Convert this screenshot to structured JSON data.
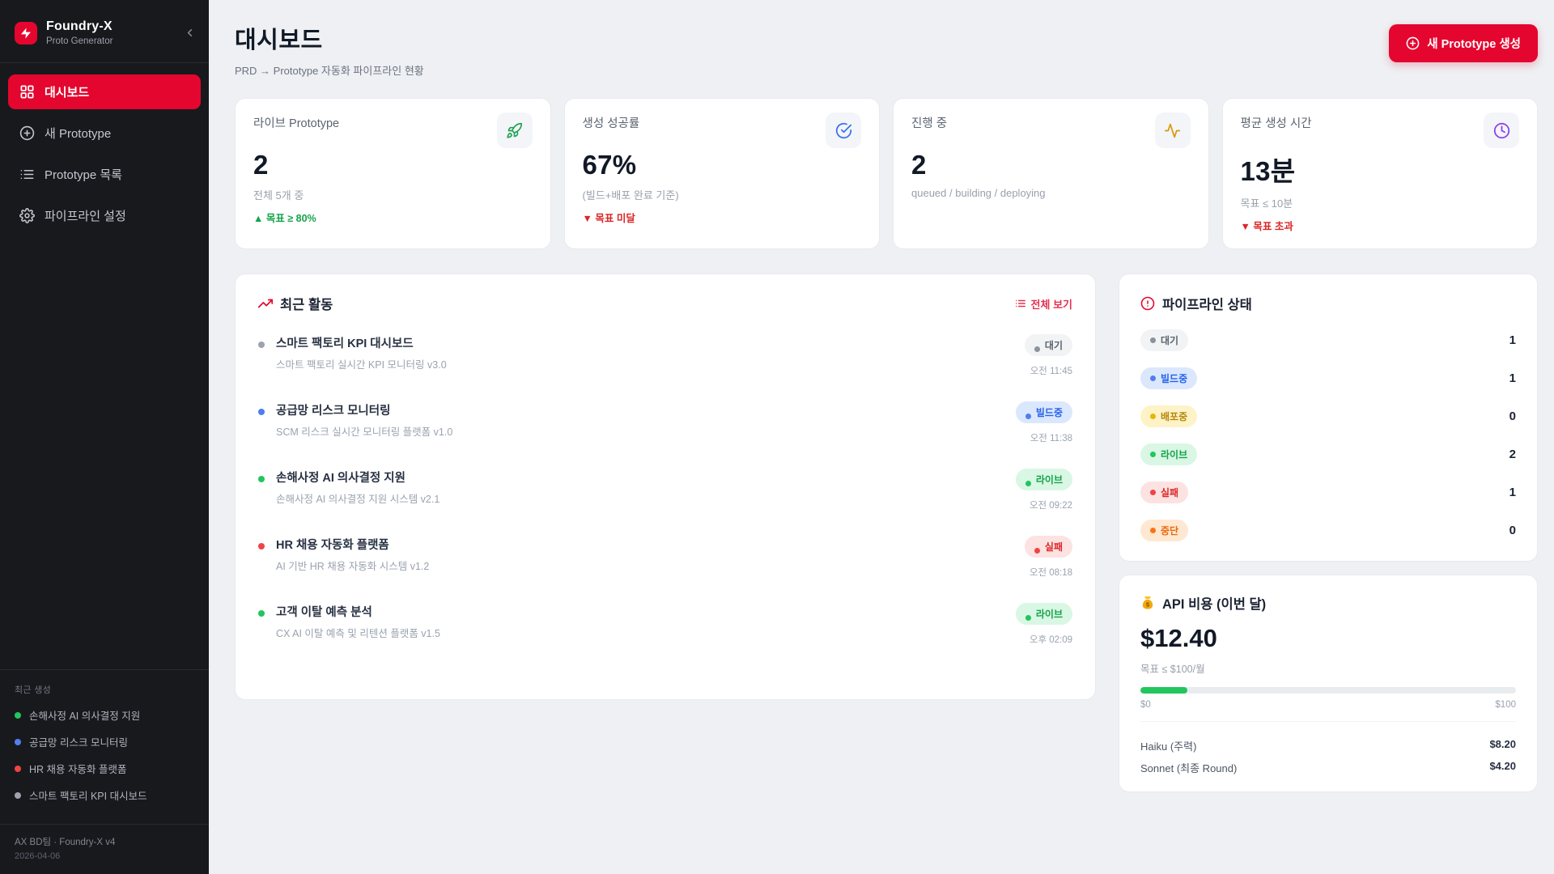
{
  "colors": {
    "brand_red": "#e4062e",
    "sidebar_bg": "#18191d",
    "page_bg": "#eef0f3",
    "status": {
      "wait": "#8b929c",
      "build": "#4f7ef0",
      "deploy": "#eab308",
      "live": "#22c55e",
      "fail": "#ef4444",
      "halt": "#f97316"
    },
    "badge_up": "#16a34a",
    "badge_down": "#dc2626",
    "progress": "#22c55e"
  },
  "sidebar": {
    "brand": {
      "name": "Foundry-X",
      "subtitle": "Proto Generator"
    },
    "nav": [
      {
        "label": "대시보드",
        "icon": "dashboard-grid-icon",
        "active": true
      },
      {
        "label": "새 Prototype",
        "icon": "plus-circle-icon",
        "active": false
      },
      {
        "label": "Prototype 목록",
        "icon": "list-icon",
        "active": false
      },
      {
        "label": "파이프라인 설정",
        "icon": "gear-icon",
        "active": false
      }
    ],
    "recent": {
      "label": "최근 생성",
      "items": [
        {
          "name": "손해사정 AI 의사결정 지원",
          "dot_color": "#22c55e"
        },
        {
          "name": "공급망 리스크 모니터링",
          "dot_color": "#4f7ef0"
        },
        {
          "name": "HR 채용 자동화 플랫폼",
          "dot_color": "#ef4444"
        },
        {
          "name": "스마트 팩토리 KPI 대시보드",
          "dot_color": "#9ca3af"
        }
      ]
    },
    "footer": {
      "team": "AX BD팀 · Foundry-X v4",
      "date": "2026-04-06"
    }
  },
  "header": {
    "title": "대시보드",
    "subtitle": "PRD → Prototype 자동화 파이프라인 현황",
    "cta_label": "새 Prototype 생성"
  },
  "stats": [
    {
      "label": "라이브 Prototype",
      "value": "2",
      "sub": "전체 5개 중",
      "badge": "▲ 목표 ≥ 80%",
      "badge_color": "#16a34a",
      "icon": "rocket-icon",
      "icon_color": "#22a352"
    },
    {
      "label": "생성 성공률",
      "value": "67%",
      "sub": "(빌드+배포 완료 기준)",
      "badge": "▼ 목표 미달",
      "badge_color": "#dc2626",
      "icon": "check-circle-icon",
      "icon_color": "#3b6ef0"
    },
    {
      "label": "진행 중",
      "value": "2",
      "sub": "queued / building / deploying",
      "icon": "activity-icon",
      "icon_color": "#d99a06"
    },
    {
      "label": "평균 생성 시간",
      "value": "13분",
      "sub": "목표 ≤ 10분",
      "badge": "▼ 목표 초과",
      "badge_color": "#dc2626",
      "icon": "clock-icon",
      "icon_color": "#8b3df0"
    }
  ],
  "activity": {
    "title": "최근 활동",
    "view_all": "전체 보기",
    "items": [
      {
        "title": "스마트 팩토리 KPI 대시보드",
        "subtitle": "스마트 팩토리 실시간 KPI 모니터링 v3.0",
        "status": "대기",
        "time": "오전 11:45",
        "dot_color": "#9ca3af"
      },
      {
        "title": "공급망 리스크 모니터링",
        "subtitle": "SCM 리스크 실시간 모니터링 플랫폼 v1.0",
        "status": "빌드중",
        "time": "오전 11:38",
        "dot_color": "#4f7ef0"
      },
      {
        "title": "손해사정 AI 의사결정 지원",
        "subtitle": "손해사정 AI 의사결정 지원 시스템 v2.1",
        "status": "라이브",
        "time": "오전 09:22",
        "dot_color": "#22c55e"
      },
      {
        "title": "HR 채용 자동화 플랫폼",
        "subtitle": "AI 기반 HR 채용 자동화 시스템 v1.2",
        "status": "실패",
        "time": "오전 08:18",
        "dot_color": "#ef4444"
      },
      {
        "title": "고객 이탈 예측 분석",
        "subtitle": "CX AI 이탈 예측 및 리텐션 플랫폼 v1.5",
        "status": "라이브",
        "time": "오후 02:09",
        "dot_color": "#22c55e"
      }
    ]
  },
  "pipeline": {
    "title": "파이프라인 상태",
    "rows": [
      {
        "label": "대기",
        "count": "1"
      },
      {
        "label": "빌드중",
        "count": "1"
      },
      {
        "label": "배포중",
        "count": "0"
      },
      {
        "label": "라이브",
        "count": "2"
      },
      {
        "label": "실패",
        "count": "1"
      },
      {
        "label": "중단",
        "count": "0"
      }
    ]
  },
  "api_cost": {
    "title": "API 비용 (이번 달)",
    "value": "$12.40",
    "target": "목표 ≤ $100/월",
    "percent": 12.4,
    "range_min": "$0",
    "range_max": "$100",
    "rows": [
      {
        "label": "Haiku (주력)",
        "value": "$8.20"
      },
      {
        "label": "Sonnet (최종 Round)",
        "value": "$4.20"
      }
    ]
  }
}
